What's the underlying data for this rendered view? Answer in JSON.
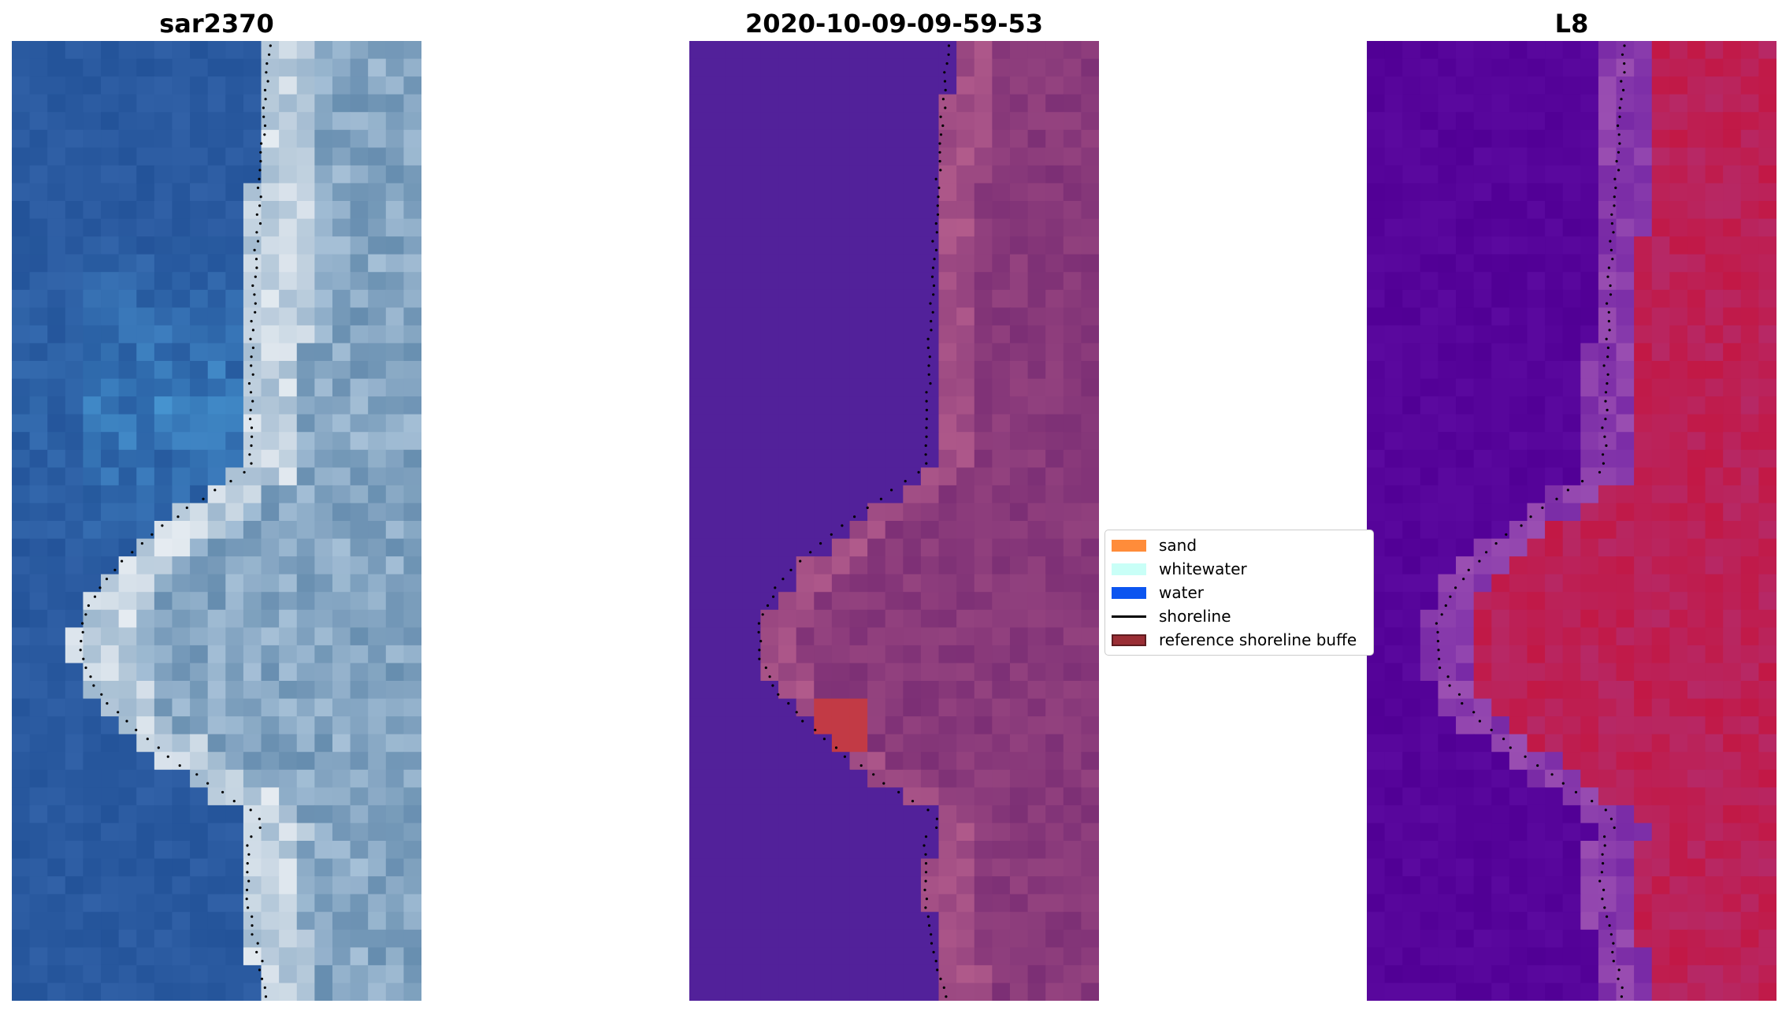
{
  "panels": [
    {
      "title": "sar2370"
    },
    {
      "title": "2020-10-09-09-59-53"
    },
    {
      "title": "L8"
    }
  ],
  "legend": {
    "items": [
      {
        "label": "sand",
        "color": "#ff8c3a"
      },
      {
        "label": "whitewater",
        "color": "#c9fff7"
      },
      {
        "label": "water",
        "color": "#0c55f0"
      },
      {
        "label": "shoreline",
        "color": "#000000"
      },
      {
        "label": "reference shoreline buffe",
        "color": "#9a2e35",
        "edge": "#5e1b1f"
      }
    ]
  },
  "colors": {
    "rgb_water_dark": "#2a5aa0",
    "rgb_water_light": "#3f8cc8",
    "rgb_land": "#6f96b8",
    "rgb_bright": "#f4f6f8",
    "class_water": "#52219a",
    "class_land": "#7c2f75",
    "class_land_light": "#b8608e",
    "class_red": "#c23a45",
    "ndwi_water": "#56049a",
    "ndwi_land": "#c21845",
    "ndwi_edge": "#9b4fb2"
  }
}
